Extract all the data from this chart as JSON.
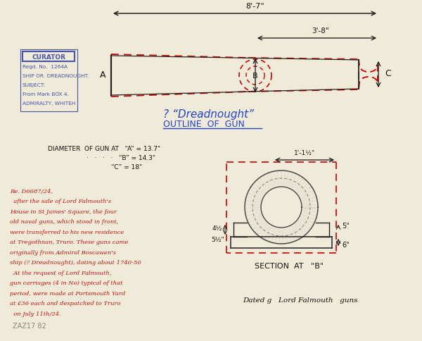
{
  "bg_color": "#f0ead8",
  "label_A": "A",
  "label_B": "B",
  "label_C": "C",
  "dim_87": "8'-7\"",
  "dim_38": "3'-8\"",
  "dim_1_1half": "1'-1½\"",
  "section_label": "SECTION  AT   \"B\"",
  "stamp_lines": [
    "CURATOR",
    "Regd. No.  1264A",
    "SHIP OR  DREADNOUGHT.",
    "SUBJECT:",
    "From Mark BOX 4.",
    "ADMIRALTY, WHITEH"
  ],
  "handwriting_red": [
    "Re. D6687/24,",
    "  after the sale of Lord Falmouth's",
    "House in St James' Square, the four",
    "old naval guns, which stood in front,",
    "were transferred to his new residence",
    "at Tregothnan, Truro. These guns came",
    "originally from Admiral Boscawen's",
    "ship (? Dreadnought), dating about 1740-50",
    "  At the request of Lord Falmouth,",
    "gun carriages (4 in No) typical of that",
    "period, were made at Portsmouth Yard",
    "at £36 each and despatched to Truro",
    "  on July 11th/24."
  ],
  "bottom_note": "Dated g   Lord Falmouth   guns",
  "zaz_ref": "ZAZ17 82",
  "dim5": "5\"",
  "dim6": "6\"",
  "dim4": "4½",
  "dim54": "5½\"",
  "diam_line1": "DIAMETER  OF GUN AT   “A” = 13.7\"",
  "diam_line2": "·   ·   ·   ·   “B” = 14.3\"",
  "diam_line3": "“C” = 18\""
}
